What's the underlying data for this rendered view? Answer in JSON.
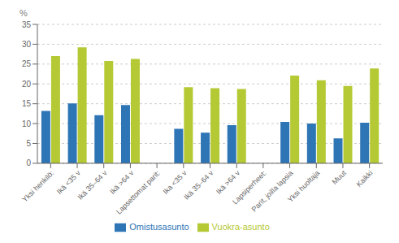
{
  "chart_data": {
    "type": "bar",
    "y_label": "%",
    "categories": [
      "Yksi henkilö:",
      "Ikä <35 v",
      "Ikä 35–64 v",
      "Ikä >64 v",
      "Lapsettomat parit:",
      "Ika <35 v",
      "Ikä 35–64 v",
      "Ikä >64 v",
      "Lapsiperheet:",
      "Parit, joilla lapsia",
      "Yksi huoltaja",
      "Muut",
      "Kaikki"
    ],
    "series": [
      {
        "name": "Omistusasunto",
        "color": "#2e75b6",
        "values": [
          13.2,
          15.1,
          12.1,
          14.7,
          null,
          8.7,
          7.7,
          9.6,
          null,
          10.4,
          10.0,
          6.3,
          10.2
        ]
      },
      {
        "name": "Vuokra-asunto",
        "color": "#b5c934",
        "values": [
          27.0,
          29.2,
          25.8,
          26.3,
          null,
          19.2,
          18.9,
          18.7,
          null,
          22.1,
          20.9,
          19.5,
          23.9
        ]
      }
    ],
    "ylim": [
      0,
      35
    ],
    "yticks": [
      0,
      5,
      10,
      15,
      20,
      25,
      30,
      35
    ],
    "grid": true,
    "legend": "bottom"
  }
}
